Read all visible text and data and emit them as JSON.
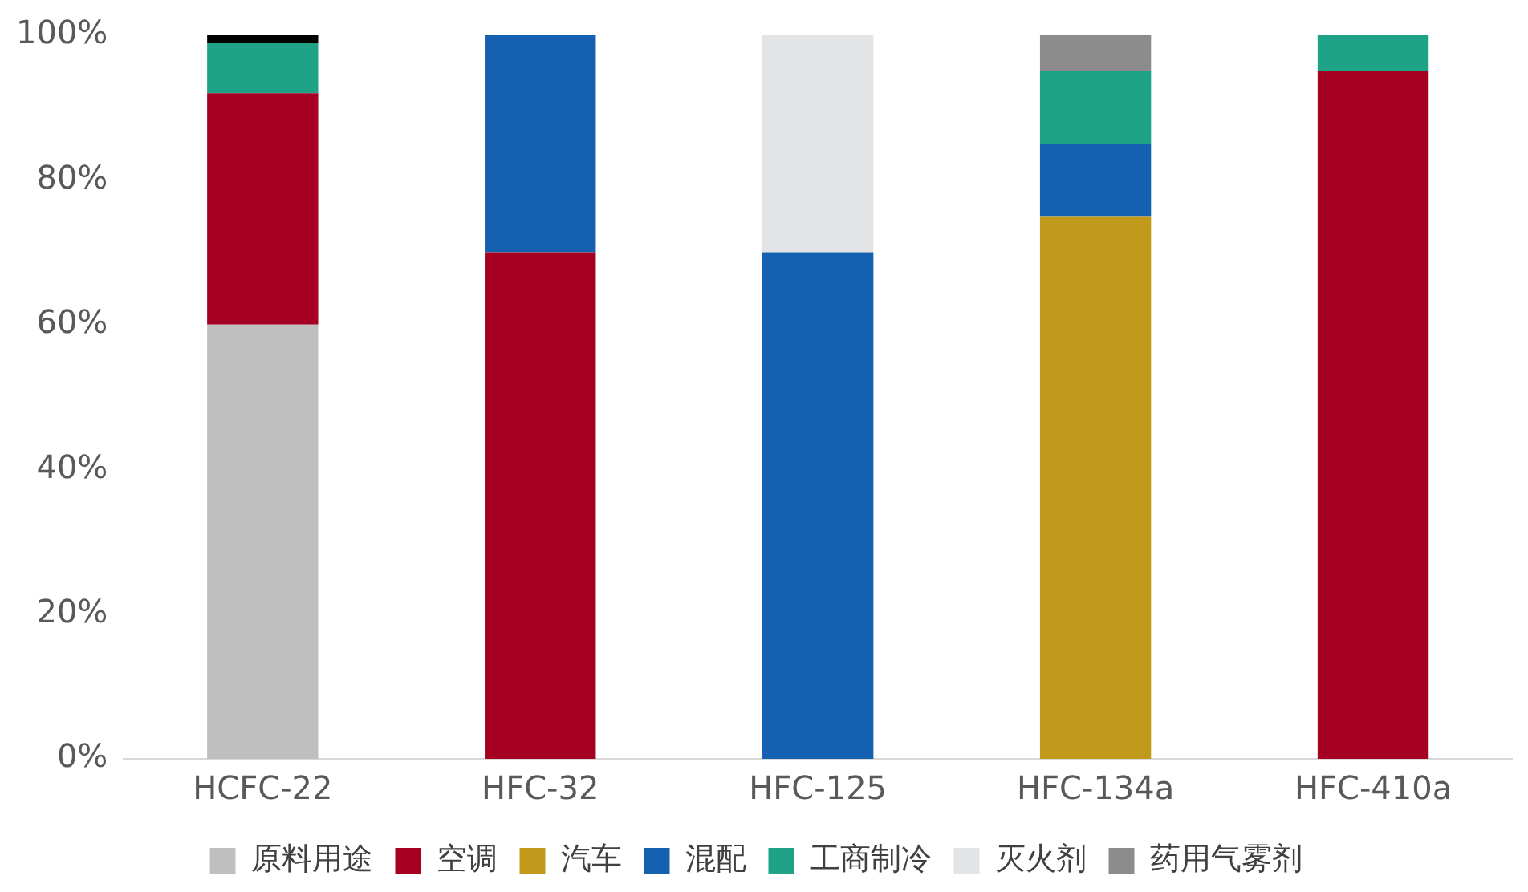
{
  "chart_data": {
    "type": "bar",
    "stacked": true,
    "categories": [
      "HCFC-22",
      "HFC-32",
      "HFC-125",
      "HFC-134a",
      "HFC-410a"
    ],
    "series": [
      {
        "name": "原料用途",
        "color": "#bfbfbf",
        "values": [
          60,
          0,
          0,
          0,
          0
        ]
      },
      {
        "name": "空调",
        "color": "#a50021",
        "values": [
          32,
          70,
          0,
          0,
          95
        ]
      },
      {
        "name": "汽车",
        "color": "#c19a1b",
        "values": [
          0,
          0,
          0,
          75,
          0
        ]
      },
      {
        "name": "混配",
        "color": "#1361b0",
        "values": [
          0,
          30,
          70,
          10,
          0
        ]
      },
      {
        "name": "工商制冷",
        "color": "#1fa386",
        "values": [
          7,
          0,
          0,
          10,
          5
        ]
      },
      {
        "name": "灭火剂",
        "color": "#e3e4e6",
        "values": [
          0,
          0,
          30,
          0,
          0
        ]
      },
      {
        "name": "药用气雾剂",
        "color": "#8c8c8c",
        "values": [
          0,
          0,
          0,
          5,
          0
        ]
      },
      {
        "color": "#000000",
        "values": [
          1,
          0,
          0,
          0,
          0
        ]
      }
    ],
    "ylim": [
      0,
      100
    ],
    "yticks": [
      {
        "value": 0,
        "label": "0%"
      },
      {
        "value": 20,
        "label": "20%"
      },
      {
        "value": 40,
        "label": "40%"
      },
      {
        "value": 60,
        "label": "60%"
      },
      {
        "value": 80,
        "label": "80%"
      },
      {
        "value": 100,
        "label": "100%"
      }
    ],
    "grid": false,
    "legend": "bottom"
  }
}
